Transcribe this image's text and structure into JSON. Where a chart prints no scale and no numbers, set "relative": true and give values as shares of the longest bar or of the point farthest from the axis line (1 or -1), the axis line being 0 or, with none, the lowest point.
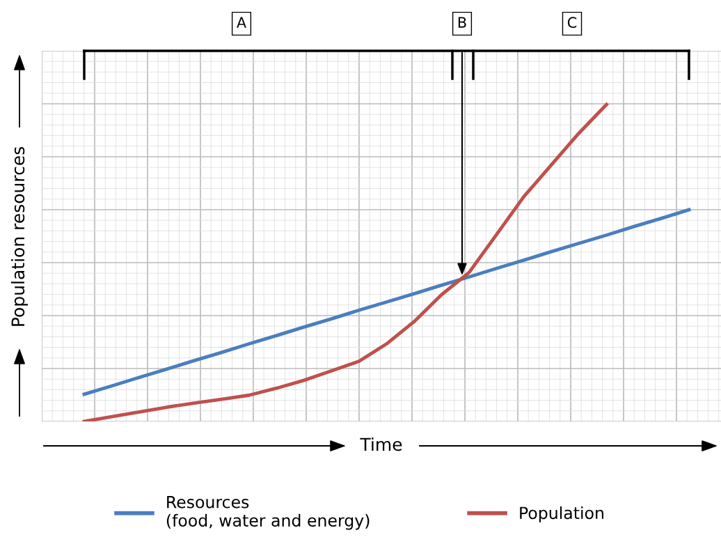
{
  "chart_data": {
    "type": "line",
    "relative": true,
    "xlabel": "Time",
    "ylabel": "Population resources",
    "categories": [
      null,
      null,
      null,
      null,
      null,
      null,
      null,
      null,
      null,
      null,
      null,
      null,
      null,
      null,
      null,
      null,
      null,
      null,
      null,
      null,
      null,
      null,
      null
    ],
    "series": [
      {
        "name": "Resources\n(food, water and energy)",
        "color": "#4a7ebf",
        "values": [
          0.086,
          0.112,
          0.139,
          0.165,
          0.192,
          0.218,
          0.245,
          0.271,
          0.298,
          0.324,
          0.351,
          0.377,
          0.403,
          0.43,
          0.456,
          0.483,
          0.509,
          0.536,
          0.562,
          0.588,
          0.615,
          0.641,
          0.668
        ]
      },
      {
        "name": "Population",
        "color": "#c0504d",
        "values": [
          0.0,
          0.015,
          0.03,
          0.045,
          0.058,
          0.07,
          0.083,
          0.105,
          0.13,
          0.16,
          0.19,
          0.245,
          0.315,
          0.4,
          0.47,
          0.59,
          0.71,
          0.81,
          0.91,
          1.0,
          null,
          null,
          null
        ]
      }
    ],
    "annotations": [
      "A",
      "B",
      "C"
    ],
    "grid": true,
    "legend": "bottom",
    "marker": "none",
    "line_style": "solid"
  }
}
